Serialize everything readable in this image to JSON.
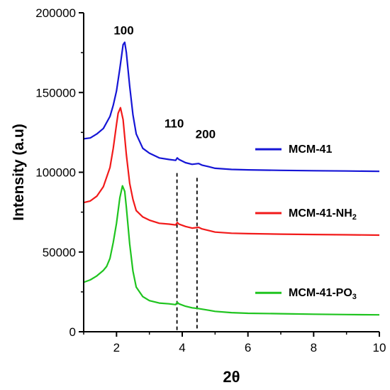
{
  "chart_data": {
    "type": "line",
    "title": "",
    "xlabel": "2θ",
    "ylabel": "Intensity (a.u)",
    "xlim": [
      1,
      10
    ],
    "ylim": [
      0,
      200000
    ],
    "x_ticks": [
      2,
      4,
      6,
      8,
      10
    ],
    "y_ticks": [
      0,
      50000,
      100000,
      150000,
      200000
    ],
    "grid": false,
    "legend_position": "right",
    "series": [
      {
        "name": "MCM-41",
        "name_base": "MCM-41",
        "name_sub": "",
        "color": "#1515d6",
        "peak_x": 2.22,
        "x": [
          1.0,
          1.2,
          1.4,
          1.6,
          1.8,
          1.9,
          2.0,
          2.1,
          2.2,
          2.25,
          2.3,
          2.4,
          2.5,
          2.6,
          2.8,
          3.0,
          3.3,
          3.6,
          3.8,
          3.85,
          3.9,
          4.1,
          4.3,
          4.5,
          4.6,
          4.8,
          5.0,
          5.5,
          6.0,
          7.0,
          8.0,
          9.0,
          10.0
        ],
        "y": [
          121000,
          121500,
          124000,
          127500,
          135000,
          142000,
          151000,
          165000,
          180000,
          181500,
          175000,
          154000,
          136000,
          124000,
          115000,
          112000,
          109000,
          108000,
          107500,
          109000,
          108000,
          106000,
          105000,
          105500,
          104500,
          103500,
          102500,
          101800,
          101500,
          101200,
          101000,
          100800,
          100600
        ]
      },
      {
        "name": "MCM-41-NH2",
        "name_base": "MCM-41-NH",
        "name_sub": "2",
        "color": "#f21a1a",
        "peak_x": 2.12,
        "x": [
          1.0,
          1.2,
          1.4,
          1.6,
          1.8,
          1.9,
          2.0,
          2.05,
          2.12,
          2.2,
          2.3,
          2.4,
          2.5,
          2.6,
          2.8,
          3.0,
          3.3,
          3.6,
          3.8,
          3.85,
          3.9,
          4.1,
          4.3,
          4.5,
          4.6,
          4.8,
          5.0,
          5.5,
          6.0,
          7.0,
          8.0,
          9.0,
          10.0
        ],
        "y": [
          81000,
          82000,
          85000,
          91000,
          103000,
          115000,
          130000,
          137000,
          140500,
          133000,
          111000,
          93000,
          83000,
          76000,
          72000,
          70000,
          68000,
          67500,
          67000,
          68500,
          67500,
          66000,
          65000,
          65500,
          64500,
          63500,
          62500,
          61800,
          61500,
          61200,
          61000,
          60800,
          60600
        ]
      },
      {
        "name": "MCM-41-PO3",
        "name_base": "MCM-41-PO",
        "name_sub": "3",
        "color": "#1fc41f",
        "peak_x": 2.18,
        "x": [
          1.0,
          1.2,
          1.4,
          1.6,
          1.7,
          1.8,
          1.9,
          2.0,
          2.1,
          2.18,
          2.25,
          2.3,
          2.4,
          2.5,
          2.6,
          2.8,
          3.0,
          3.3,
          3.6,
          3.8,
          3.85,
          3.9,
          4.1,
          4.3,
          4.5,
          4.8,
          5.0,
          5.5,
          6.0,
          7.0,
          8.0,
          9.0,
          10.0
        ],
        "y": [
          31000,
          32500,
          35000,
          38500,
          41000,
          46000,
          56000,
          68000,
          84000,
          91500,
          88000,
          78000,
          55000,
          38000,
          28000,
          22000,
          19500,
          18000,
          17500,
          17000,
          18500,
          17500,
          16000,
          15000,
          14500,
          13500,
          12800,
          12000,
          11600,
          11300,
          11000,
          10800,
          10600
        ]
      }
    ],
    "annotations": [
      {
        "text": "100",
        "x": 2.22,
        "y": 182000
      },
      {
        "text": "110",
        "x": 3.84,
        "y": 107500
      },
      {
        "text": "200",
        "x": 4.45,
        "y": 104500
      }
    ],
    "dashed_lines_x": [
      3.84,
      4.45
    ]
  }
}
